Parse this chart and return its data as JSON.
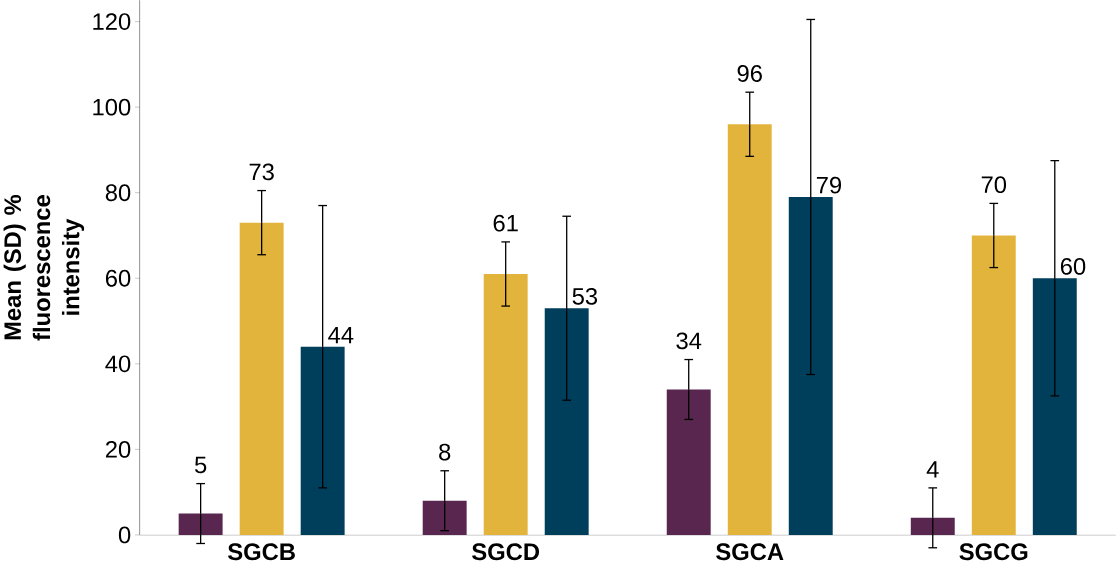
{
  "chart_data": {
    "type": "bar",
    "ylabel": "Mean (SD) % fluorescence intensity",
    "categories": [
      "SGCB",
      "SGCD",
      "SGCA",
      "SGCG"
    ],
    "series": [
      {
        "color": "#58264e",
        "values": [
          5,
          8,
          34,
          4
        ],
        "errors": [
          7,
          7,
          7,
          7
        ]
      },
      {
        "color": "#e3b43c",
        "values": [
          73,
          61,
          96,
          70
        ],
        "errors": [
          7.5,
          7.5,
          7.5,
          7.5
        ]
      },
      {
        "color": "#003f5c",
        "values": [
          44,
          53,
          79,
          60
        ],
        "errors": [
          33,
          21.5,
          41.5,
          27.5
        ]
      }
    ],
    "ylim": [
      0,
      125
    ],
    "yticks": [
      0,
      20,
      40,
      60,
      80,
      100,
      120
    ],
    "data_labels": true,
    "grid": false
  }
}
